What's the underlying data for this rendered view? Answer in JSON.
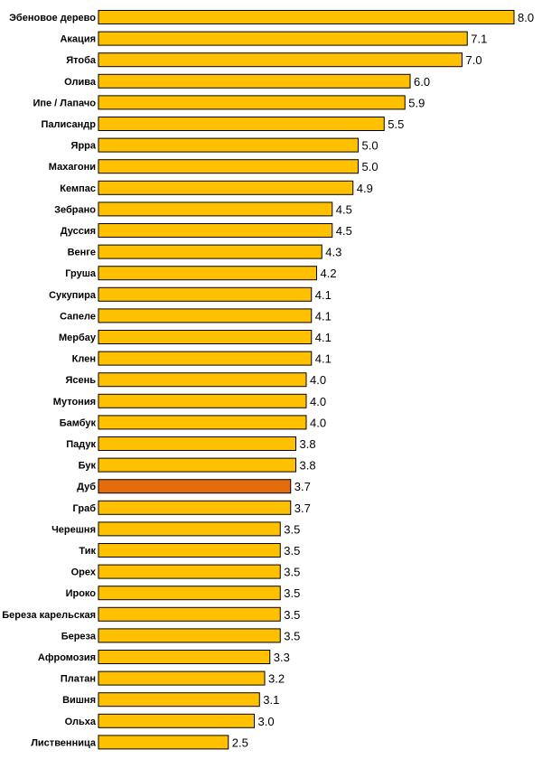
{
  "chart_data": {
    "type": "bar",
    "orientation": "horizontal",
    "title": "",
    "xlabel": "",
    "ylabel": "",
    "xlim": [
      0,
      8.0
    ],
    "grid": false,
    "legend": "none",
    "bar_color": "#FFC000",
    "highlight_color": "#E46C0A",
    "highlight_category": "Дуб",
    "categories": [
      "Эбеновое дерево",
      "Акация",
      "Ятоба",
      "Олива",
      "Ипе / Лапачо",
      "Палисандр",
      "Ярра",
      "Махагони",
      "Кемпас",
      "Зебрано",
      "Дуссия",
      "Венге",
      "Груша",
      "Сукупира",
      "Сапеле",
      "Мербау",
      "Клен",
      "Ясень",
      "Мутония",
      "Бамбук",
      "Падук",
      "Бук",
      "Дуб",
      "Граб",
      "Черешня",
      "Тик",
      "Орех",
      "Ироко",
      "Береза карельская",
      "Береза",
      "Афромозия",
      "Платан",
      "Вишня",
      "Ольха",
      "Лиственница"
    ],
    "values": [
      8.0,
      7.1,
      7.0,
      6.0,
      5.9,
      5.5,
      5.0,
      5.0,
      4.9,
      4.5,
      4.5,
      4.3,
      4.2,
      4.1,
      4.1,
      4.1,
      4.1,
      4.0,
      4.0,
      4.0,
      3.8,
      3.8,
      3.7,
      3.7,
      3.5,
      3.5,
      3.5,
      3.5,
      3.5,
      3.5,
      3.3,
      3.2,
      3.1,
      3.0,
      2.5
    ],
    "value_labels": [
      "8.0",
      "7.1",
      "7.0",
      "6.0",
      "5.9",
      "5.5",
      "5.0",
      "5.0",
      "4.9",
      "4.5",
      "4.5",
      "4.3",
      "4.2",
      "4.1",
      "4.1",
      "4.1",
      "4.1",
      "4.0",
      "4.0",
      "4.0",
      "3.8",
      "3.8",
      "3.7",
      "3.7",
      "3.5",
      "3.5",
      "3.5",
      "3.5",
      "3.5",
      "3.5",
      "3.3",
      "3.2",
      "3.1",
      "3.0",
      "2.5"
    ]
  }
}
